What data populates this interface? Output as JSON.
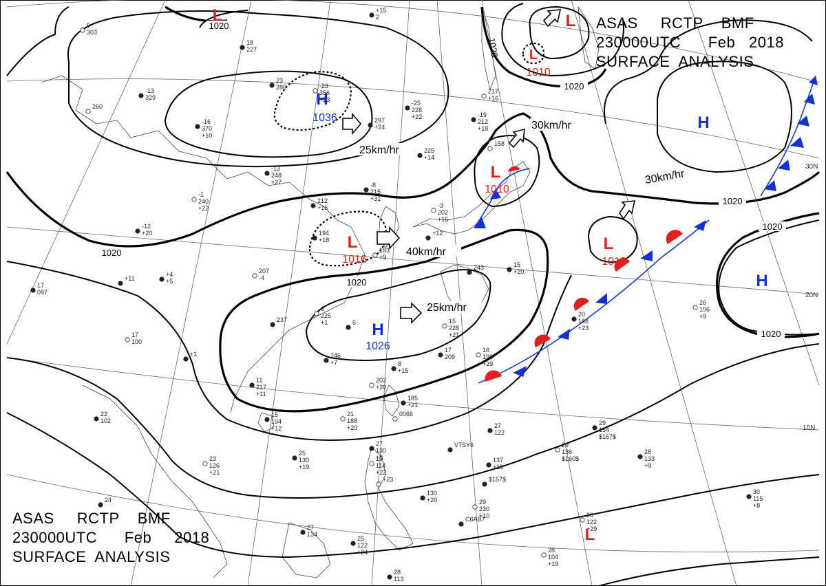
{
  "title_top_right": {
    "line1": "ASAS     RCTP    BMF",
    "line2": "230000UTC      Feb   2018",
    "line3": "SURFACE  ANALYSIS"
  },
  "title_bottom_left": {
    "line1": "ASAS     RCTP    BMF",
    "line2": "230000UTC      Feb     2018",
    "line3": "SURFACE  ANALYSIS"
  },
  "lat_labels": [
    "30N",
    "20N",
    "10N"
  ],
  "isobar_labels": [
    "1020",
    "1020",
    "1020",
    "1020",
    "1020",
    "1020",
    "1020",
    "1020"
  ],
  "pressure_centers": [
    {
      "symbol": "L",
      "value": "",
      "color": "#e0201c"
    },
    {
      "symbol": "L",
      "value": "",
      "color": "#e0201c"
    },
    {
      "symbol": "L",
      "value": "1010",
      "color": "#e0201c"
    },
    {
      "symbol": "H",
      "value": "1036",
      "color": "#1432d2"
    },
    {
      "symbol": "L",
      "value": "1010",
      "color": "#e0201c"
    },
    {
      "symbol": "L",
      "value": "1016",
      "color": "#e0201c"
    },
    {
      "symbol": "H",
      "value": "1026",
      "color": "#1432d2"
    },
    {
      "symbol": "L",
      "value": "1012",
      "color": "#e0201c"
    },
    {
      "symbol": "H",
      "value": "",
      "color": "#1432d2"
    },
    {
      "symbol": "H",
      "value": "",
      "color": "#1432d2"
    },
    {
      "symbol": "L",
      "value": "",
      "color": "#e0201c"
    }
  ],
  "motion_labels": [
    "25km/hr",
    "30km/hr",
    "30km/hr",
    "40km/hr",
    "25km/hr"
  ],
  "stations": [
    {
      "v": [
        "9",
        "303"
      ]
    },
    {
      "v": [
        "18",
        "227"
      ]
    },
    {
      "v": [
        "23",
        "286"
      ]
    },
    {
      "v": [
        "-23",
        "356",
        "+23"
      ]
    },
    {
      "v": [
        "-13",
        "329"
      ]
    },
    {
      "v": [
        "-16",
        "370",
        "+10"
      ]
    },
    {
      "v": [
        "260"
      ]
    },
    {
      "v": [
        "297",
        "+24"
      ]
    },
    {
      "v": [
        "-25",
        "228",
        "+22"
      ]
    },
    {
      "v": [
        "217",
        "+16"
      ]
    },
    {
      "v": [
        "-19",
        "212",
        "+18"
      ]
    },
    {
      "v": [
        "225",
        "+14"
      ]
    },
    {
      "v": [
        "158"
      ]
    },
    {
      "v": [
        "-13",
        "248",
        "+27"
      ]
    },
    {
      "v": [
        "-8",
        "215",
        "+31"
      ]
    },
    {
      "v": [
        "-1",
        "240",
        "+22"
      ]
    },
    {
      "v": [
        "212",
        "+16"
      ]
    },
    {
      "v": [
        "194",
        "+18"
      ]
    },
    {
      "v": [
        "-3",
        "202",
        "+15"
      ]
    },
    {
      "v": [
        "-12",
        "+20"
      ]
    },
    {
      "v": [
        "+12"
      ]
    },
    {
      "v": [
        "183",
        "+9"
      ]
    },
    {
      "v": [
        "243"
      ]
    },
    {
      "v": [
        "+4",
        "+5"
      ]
    },
    {
      "v": [
        "207",
        "-4"
      ]
    },
    {
      "v": [
        "+11"
      ]
    },
    {
      "v": [
        "17",
        "097"
      ]
    },
    {
      "v": [
        "6",
        "225",
        "+1"
      ]
    },
    {
      "v": [
        "237"
      ]
    },
    {
      "v": [
        "15",
        "+20"
      ]
    },
    {
      "v": [
        "17",
        "100"
      ]
    },
    {
      "v": [
        "+1"
      ]
    },
    {
      "v": [
        "5"
      ]
    },
    {
      "v": [
        "15",
        "228",
        "+21"
      ]
    },
    {
      "v": [
        "246",
        "+7"
      ]
    },
    {
      "v": [
        "17",
        "209"
      ]
    },
    {
      "v": [
        "16",
        "198",
        "+29"
      ]
    },
    {
      "v": [
        "8",
        "+15"
      ]
    },
    {
      "v": [
        "11",
        "217",
        "+11"
      ]
    },
    {
      "v": [
        "202",
        "+20"
      ]
    },
    {
      "v": [
        "185",
        "+21"
      ]
    },
    {
      "v": [
        "20",
        "168",
        "+23"
      ]
    },
    {
      "v": [
        "26",
        "196",
        "+9"
      ]
    },
    {
      "v": [
        "22",
        "102"
      ]
    },
    {
      "v": [
        "15",
        "194",
        "+12"
      ]
    },
    {
      "v": [
        "21",
        "188",
        "+20"
      ]
    },
    {
      "v": [
        "27",
        "122"
      ]
    },
    {
      "v": [
        "29",
        "154",
        "$167$"
      ]
    },
    {
      "v": [
        "23",
        "126",
        "+21"
      ]
    },
    {
      "v": [
        "25",
        "130",
        "+19"
      ]
    },
    {
      "v": [
        "27",
        "130",
        "+8"
      ]
    },
    {
      "v": [
        "19",
        "114",
        "+22"
      ]
    },
    {
      "v": [
        "V7SY6"
      ]
    },
    {
      "v": [
        "137",
        "+19"
      ]
    },
    {
      "v": [
        "29",
        "136",
        "$160$"
      ]
    },
    {
      "v": [
        "28",
        "133",
        "+9"
      ]
    },
    {
      "v": [
        "$157$"
      ]
    },
    {
      "v": [
        "+23"
      ]
    },
    {
      "v": [
        "24"
      ]
    },
    {
      "v": [
        "130",
        "+20"
      ]
    },
    {
      "v": [
        "29",
        "230",
        "+10"
      ]
    },
    {
      "v": [
        "C6AB7"
      ]
    },
    {
      "v": [
        "30",
        "115",
        "+8"
      ]
    },
    {
      "v": [
        "28",
        "122",
        "+29"
      ]
    },
    {
      "v": [
        "27",
        "134"
      ]
    },
    {
      "v": [
        "25",
        "122",
        "+24"
      ]
    },
    {
      "v": [
        "28",
        "104",
        "+19"
      ]
    },
    {
      "v": [
        "28",
        "113"
      ]
    },
    {
      "v": [
        "+15",
        "2"
      ]
    },
    {
      "v": [
        "0066"
      ]
    }
  ],
  "colors": {
    "low": "#e0201c",
    "high": "#1432d2",
    "isobar": "#000000",
    "grid": "#555555",
    "coast": "#444444"
  }
}
